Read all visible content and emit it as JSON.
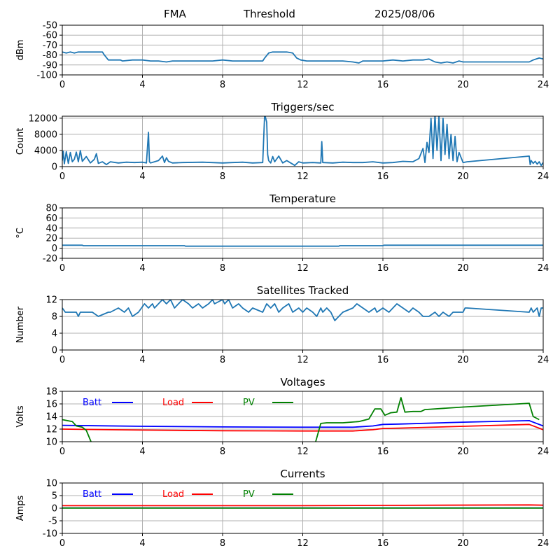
{
  "header": {
    "station": "FMA",
    "mode": "Threshold",
    "date": "2025/08/06"
  },
  "colors": {
    "series": "#1f77b4",
    "batt": "#0000ff",
    "load": "#ff0000",
    "pv": "#008000",
    "grid": "#b0b0b0"
  },
  "chart_data": [
    {
      "type": "line",
      "title": "",
      "ylabel": "dBm",
      "xlim": [
        0,
        24
      ],
      "xticks": [
        0,
        4,
        8,
        12,
        16,
        20,
        24
      ],
      "ylim": [
        -100,
        -50
      ],
      "yticks": [
        -100,
        -90,
        -80,
        -70,
        -60,
        -50
      ],
      "series": [
        {
          "color": "#1f77b4",
          "x": [
            0,
            0.2,
            0.4,
            0.6,
            0.8,
            1.2,
            1.6,
            2.0,
            2.1,
            2.3,
            2.6,
            2.9,
            3.0,
            3.5,
            4.0,
            4.4,
            4.8,
            5.2,
            5.5,
            6.0,
            7.0,
            7.5,
            8.0,
            8.5,
            9.0,
            9.5,
            10.0,
            10.1,
            10.3,
            10.5,
            10.8,
            11.2,
            11.5,
            11.7,
            11.9,
            12.2,
            12.6,
            13.0,
            14.0,
            14.5,
            14.8,
            15.0,
            15.5,
            16.0,
            16.5,
            17.0,
            17.5,
            18.0,
            18.3,
            18.6,
            18.9,
            19.2,
            19.5,
            19.8,
            20.0,
            21.0,
            22.0,
            23.0,
            23.3,
            23.5,
            23.8,
            24.0
          ],
          "y": [
            -77,
            -78,
            -77,
            -78,
            -77,
            -77,
            -77,
            -77,
            -80,
            -85,
            -85,
            -85,
            -86,
            -85,
            -85,
            -86,
            -86,
            -87,
            -86,
            -86,
            -86,
            -86,
            -85,
            -86,
            -86,
            -86,
            -86,
            -83,
            -78,
            -77,
            -77,
            -77,
            -78,
            -83,
            -85,
            -86,
            -86,
            -86,
            -86,
            -87,
            -88,
            -86,
            -86,
            -86,
            -85,
            -86,
            -85,
            -85,
            -84,
            -87,
            -88,
            -87,
            -88,
            -86,
            -87,
            -87,
            -87,
            -87,
            -87,
            -85,
            -83,
            -84
          ]
        }
      ]
    },
    {
      "type": "line",
      "title": "Triggers/sec",
      "ylabel": "Count",
      "xlim": [
        0,
        24
      ],
      "xticks": [
        0,
        4,
        8,
        12,
        16,
        20,
        24
      ],
      "ylim": [
        0,
        12500
      ],
      "yticks": [
        0,
        4000,
        8000,
        12000
      ],
      "series": [
        {
          "color": "#1f77b4",
          "x": [
            0,
            0.05,
            0.1,
            0.2,
            0.3,
            0.4,
            0.5,
            0.6,
            0.7,
            0.8,
            0.9,
            1.0,
            1.2,
            1.4,
            1.6,
            1.7,
            1.8,
            2.0,
            2.2,
            2.4,
            2.8,
            3.2,
            3.6,
            4.0,
            4.2,
            4.3,
            4.35,
            4.4,
            4.6,
            4.8,
            5.0,
            5.1,
            5.2,
            5.3,
            5.5,
            6.0,
            7.0,
            8.0,
            8.5,
            9.0,
            9.5,
            10.0,
            10.1,
            10.2,
            10.25,
            10.3,
            10.4,
            10.5,
            10.6,
            10.8,
            11.0,
            11.2,
            11.4,
            11.6,
            11.8,
            12.0,
            12.5,
            12.9,
            12.95,
            13.0,
            13.5,
            14.0,
            14.5,
            15.0,
            15.5,
            16.0,
            16.5,
            17.0,
            17.5,
            17.8,
            18.0,
            18.1,
            18.2,
            18.3,
            18.4,
            18.5,
            18.6,
            18.7,
            18.8,
            18.9,
            19.0,
            19.1,
            19.2,
            19.3,
            19.4,
            19.5,
            19.6,
            19.7,
            19.8,
            20.0,
            20.2,
            23.3,
            23.35,
            23.4,
            23.5,
            23.6,
            23.7,
            23.8,
            23.9,
            24.0
          ],
          "y": [
            1500,
            3800,
            700,
            3700,
            800,
            3500,
            1200,
            1800,
            3600,
            1200,
            4000,
            1300,
            2500,
            900,
            1800,
            3200,
            800,
            1200,
            500,
            1200,
            900,
            1100,
            1000,
            1100,
            900,
            8500,
            1200,
            900,
            1200,
            1500,
            2600,
            1000,
            2200,
            1300,
            900,
            1000,
            1100,
            900,
            1000,
            1100,
            900,
            1000,
            13000,
            11000,
            3000,
            1500,
            900,
            2500,
            1200,
            2600,
            900,
            1500,
            900,
            300,
            1200,
            900,
            1000,
            900,
            6200,
            1000,
            900,
            1100,
            1000,
            1000,
            1200,
            900,
            1000,
            1300,
            1200,
            2000,
            4500,
            1000,
            6000,
            3500,
            12000,
            2000,
            13000,
            4000,
            12500,
            1500,
            12000,
            3000,
            10500,
            2000,
            8000,
            1500,
            7500,
            1200,
            3500,
            1000,
            1200,
            2600,
            500,
            1500,
            800,
            1300,
            600,
            1200,
            300,
            1000
          ]
        }
      ]
    },
    {
      "type": "line",
      "title": "Temperature",
      "ylabel": "°C",
      "xlim": [
        0,
        24
      ],
      "xticks": [
        0,
        4,
        8,
        12,
        16,
        20,
        24
      ],
      "ylim": [
        -20,
        80
      ],
      "yticks": [
        -20,
        0,
        20,
        40,
        60,
        80
      ],
      "series": [
        {
          "color": "#1f77b4",
          "x": [
            0,
            1.0,
            1.05,
            6.1,
            6.15,
            13.8,
            13.85,
            16.0,
            16.05,
            24.0
          ],
          "y": [
            6,
            6,
            5,
            5,
            4,
            4,
            5,
            5,
            6,
            6
          ]
        }
      ]
    },
    {
      "type": "line",
      "title": "Satellites Tracked",
      "ylabel": "Number",
      "xlim": [
        0,
        24
      ],
      "xticks": [
        0,
        4,
        8,
        12,
        16,
        20,
        24
      ],
      "ylim": [
        0,
        12
      ],
      "yticks": [
        0,
        4,
        8,
        12
      ],
      "series": [
        {
          "color": "#1f77b4",
          "x": [
            0,
            0.15,
            0.7,
            0.8,
            0.9,
            1.5,
            1.8,
            2.3,
            2.4,
            2.8,
            3.1,
            3.3,
            3.5,
            3.8,
            4.1,
            4.3,
            4.5,
            4.6,
            4.8,
            5.0,
            5.2,
            5.4,
            5.6,
            5.8,
            6.0,
            6.3,
            6.5,
            6.8,
            7.0,
            7.3,
            7.5,
            7.6,
            8.0,
            8.1,
            8.3,
            8.5,
            8.8,
            9.0,
            9.3,
            9.5,
            10.0,
            10.2,
            10.4,
            10.6,
            10.8,
            11.0,
            11.3,
            11.5,
            11.8,
            12.0,
            12.2,
            12.5,
            12.7,
            12.9,
            13.0,
            13.2,
            13.4,
            13.6,
            13.8,
            14.0,
            14.5,
            14.7,
            15.0,
            15.3,
            15.6,
            15.7,
            16.0,
            16.3,
            16.5,
            16.7,
            17.0,
            17.3,
            17.5,
            17.8,
            18.0,
            18.3,
            18.6,
            18.8,
            19.0,
            19.3,
            19.5,
            19.8,
            20.0,
            20.1,
            20.2,
            23.3,
            23.4,
            23.5,
            23.7,
            23.8,
            23.9,
            24.0
          ],
          "y": [
            10,
            9,
            9,
            8,
            9,
            9,
            8,
            9,
            9,
            10,
            9,
            10,
            8,
            9,
            11,
            10,
            11,
            10,
            11,
            12,
            11,
            12,
            10,
            11,
            12,
            11,
            10,
            11,
            10,
            11,
            12,
            11,
            12,
            11,
            12,
            10,
            11,
            10,
            9,
            10,
            9,
            11,
            10,
            11,
            9,
            10,
            11,
            9,
            10,
            9,
            10,
            9,
            8,
            10,
            9,
            10,
            9,
            7,
            8,
            9,
            10,
            11,
            10,
            9,
            10,
            9,
            10,
            9,
            10,
            11,
            10,
            9,
            10,
            9,
            8,
            8,
            9,
            8,
            9,
            8,
            9,
            9,
            9,
            10,
            10,
            9,
            10,
            9,
            10,
            8,
            10,
            10
          ]
        }
      ]
    },
    {
      "type": "line",
      "title": "Voltages",
      "ylabel": "Volts",
      "xlim": [
        0,
        24
      ],
      "xticks": [
        0,
        4,
        8,
        12,
        16,
        20,
        24
      ],
      "ylim": [
        10,
        18
      ],
      "yticks": [
        10,
        12,
        14,
        16,
        18
      ],
      "legend": "top-left",
      "series": [
        {
          "name": "Batt",
          "color": "#0000ff",
          "x": [
            0,
            4,
            8,
            12,
            14.5,
            15.5,
            16.0,
            16.8,
            20,
            23.3,
            24.0
          ],
          "y": [
            12.6,
            12.45,
            12.35,
            12.3,
            12.3,
            12.5,
            12.75,
            12.8,
            13.1,
            13.35,
            12.5
          ]
        },
        {
          "name": "Load",
          "color": "#ff0000",
          "x": [
            0,
            4,
            8,
            12,
            14.5,
            15.5,
            16.0,
            16.8,
            20,
            23.3,
            24.0
          ],
          "y": [
            12.0,
            11.85,
            11.75,
            11.7,
            11.7,
            11.9,
            12.1,
            12.15,
            12.45,
            12.75,
            11.9
          ]
        },
        {
          "name": "PV",
          "color": "#008000",
          "x": [
            0,
            0.5,
            0.7,
            1.0,
            1.2,
            1.5,
            12.6,
            12.9,
            13.2,
            14.0,
            14.8,
            15.3,
            15.6,
            15.9,
            16.1,
            16.4,
            16.7,
            16.9,
            17.1,
            17.5,
            17.9,
            18.1,
            20.0,
            23.3,
            23.5,
            23.8
          ],
          "y": [
            13.5,
            13.2,
            12.5,
            12.3,
            11.8,
            9.5,
            9.5,
            12.9,
            13.0,
            13.0,
            13.2,
            13.6,
            15.2,
            15.2,
            14.2,
            14.6,
            14.7,
            17.0,
            14.7,
            14.8,
            14.8,
            15.1,
            15.5,
            16.1,
            14.0,
            13.5
          ]
        }
      ]
    },
    {
      "type": "line",
      "title": "Currents",
      "ylabel": "Amps",
      "xlim": [
        0,
        24
      ],
      "xticks": [
        0,
        4,
        8,
        12,
        16,
        20,
        24
      ],
      "ylim": [
        -10,
        10
      ],
      "yticks": [
        -10,
        -5,
        0,
        5,
        10
      ],
      "legend": "top-left",
      "series": [
        {
          "name": "Batt",
          "color": "#0000ff",
          "x": [
            0,
            24
          ],
          "y": [
            0.1,
            0.1
          ]
        },
        {
          "name": "Load",
          "color": "#ff0000",
          "x": [
            0,
            12,
            16,
            23.3,
            24
          ],
          "y": [
            1.0,
            1.0,
            1.1,
            1.3,
            1.2
          ]
        },
        {
          "name": "PV",
          "color": "#008000",
          "x": [
            0,
            24
          ],
          "y": [
            0.05,
            0.05
          ]
        }
      ]
    }
  ]
}
